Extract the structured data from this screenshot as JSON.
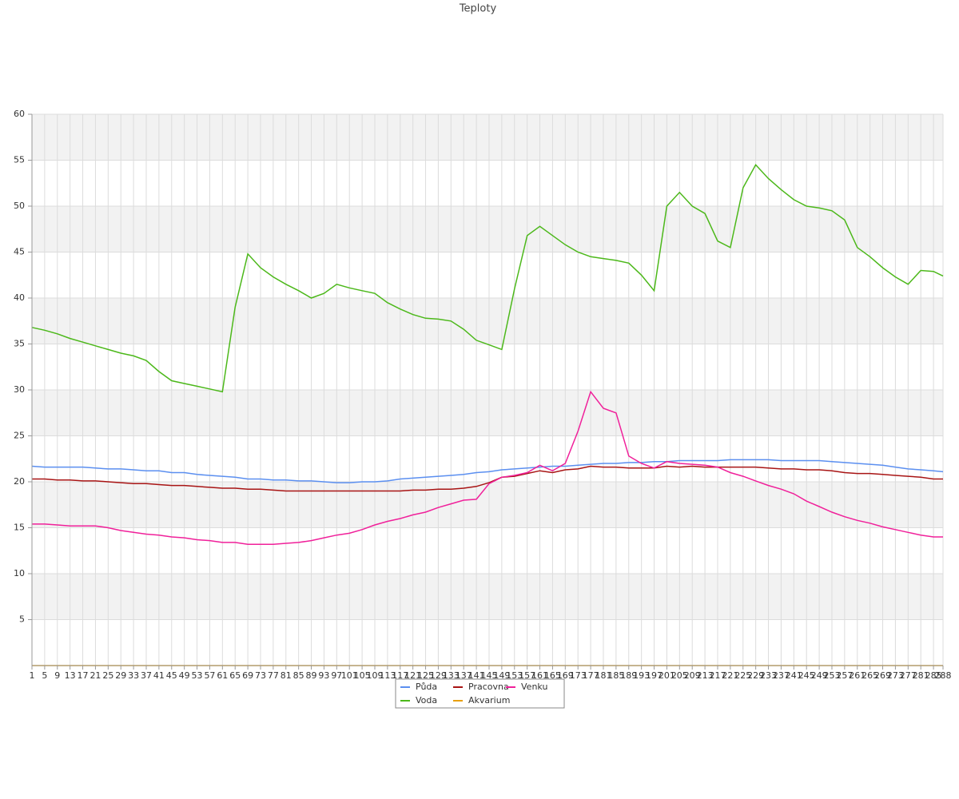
{
  "chart_data": {
    "type": "line",
    "title": "Teploty",
    "x": [
      1,
      5,
      9,
      13,
      17,
      21,
      25,
      29,
      33,
      37,
      41,
      45,
      49,
      53,
      57,
      61,
      65,
      69,
      73,
      77,
      81,
      85,
      89,
      93,
      97,
      101,
      105,
      109,
      113,
      117,
      121,
      125,
      129,
      133,
      137,
      141,
      145,
      149,
      153,
      157,
      161,
      165,
      169,
      173,
      177,
      181,
      185,
      189,
      193,
      197,
      201,
      205,
      209,
      213,
      217,
      221,
      225,
      229,
      233,
      237,
      241,
      245,
      249,
      253,
      257,
      261,
      265,
      269,
      273,
      277,
      281,
      285,
      288
    ],
    "xlim": [
      1,
      288
    ],
    "xticks": [
      1,
      5,
      9,
      13,
      17,
      21,
      25,
      29,
      33,
      37,
      41,
      45,
      49,
      53,
      57,
      61,
      65,
      69,
      73,
      77,
      81,
      85,
      89,
      93,
      97,
      101,
      105,
      109,
      113,
      117,
      121,
      125,
      129,
      133,
      137,
      141,
      145,
      149,
      153,
      157,
      161,
      165,
      169,
      173,
      177,
      181,
      185,
      189,
      193,
      197,
      201,
      205,
      209,
      213,
      217,
      221,
      225,
      229,
      233,
      237,
      241,
      245,
      249,
      253,
      257,
      261,
      265,
      269,
      273,
      277,
      281,
      285,
      288
    ],
    "ylim": [
      0,
      60
    ],
    "yticks": [
      5,
      10,
      15,
      20,
      25,
      30,
      35,
      40,
      45,
      50,
      55,
      60
    ],
    "grid": true,
    "legend": "bottom",
    "series": [
      {
        "name": "Půda",
        "color": "#5b8ff0",
        "values": [
          21.7,
          21.6,
          21.6,
          21.6,
          21.6,
          21.5,
          21.4,
          21.4,
          21.3,
          21.2,
          21.2,
          21.0,
          21.0,
          20.8,
          20.7,
          20.6,
          20.5,
          20.3,
          20.3,
          20.2,
          20.2,
          20.1,
          20.1,
          20.0,
          19.9,
          19.9,
          20.0,
          20.0,
          20.1,
          20.3,
          20.4,
          20.5,
          20.6,
          20.7,
          20.8,
          21.0,
          21.1,
          21.3,
          21.4,
          21.5,
          21.6,
          21.7,
          21.7,
          21.8,
          21.9,
          22.0,
          22.0,
          22.1,
          22.1,
          22.2,
          22.2,
          22.3,
          22.3,
          22.3,
          22.3,
          22.4,
          22.4,
          22.4,
          22.4,
          22.3,
          22.3,
          22.3,
          22.3,
          22.2,
          22.1,
          22.0,
          21.9,
          21.8,
          21.6,
          21.4,
          21.3,
          21.2,
          21.1
        ]
      },
      {
        "name": "Pracovna",
        "color": "#a81414",
        "values": [
          20.3,
          20.3,
          20.2,
          20.2,
          20.1,
          20.1,
          20.0,
          19.9,
          19.8,
          19.8,
          19.7,
          19.6,
          19.6,
          19.5,
          19.4,
          19.3,
          19.3,
          19.2,
          19.2,
          19.1,
          19.0,
          19.0,
          19.0,
          19.0,
          19.0,
          19.0,
          19.0,
          19.0,
          19.0,
          19.0,
          19.1,
          19.1,
          19.2,
          19.2,
          19.3,
          19.5,
          19.9,
          20.5,
          20.6,
          20.9,
          21.2,
          21.0,
          21.3,
          21.4,
          21.7,
          21.6,
          21.6,
          21.5,
          21.5,
          21.5,
          21.7,
          21.6,
          21.7,
          21.6,
          21.6,
          21.6,
          21.6,
          21.6,
          21.5,
          21.4,
          21.4,
          21.3,
          21.3,
          21.2,
          21.0,
          20.9,
          20.9,
          20.8,
          20.7,
          20.6,
          20.5,
          20.3,
          20.3
        ]
      },
      {
        "name": "Venku",
        "color": "#f0209a",
        "values": [
          15.4,
          15.4,
          15.3,
          15.2,
          15.2,
          15.2,
          15.0,
          14.7,
          14.5,
          14.3,
          14.2,
          14.0,
          13.9,
          13.7,
          13.6,
          13.4,
          13.4,
          13.2,
          13.2,
          13.2,
          13.3,
          13.4,
          13.6,
          13.9,
          14.2,
          14.4,
          14.8,
          15.3,
          15.7,
          16.0,
          16.4,
          16.7,
          17.2,
          17.6,
          18.0,
          18.1,
          19.8,
          20.5,
          20.7,
          21.0,
          21.8,
          21.2,
          22.0,
          25.5,
          29.8,
          28.0,
          27.5,
          22.8,
          22.0,
          21.5,
          22.2,
          22.0,
          21.9,
          21.8,
          21.6,
          21.0,
          20.6,
          20.1,
          19.6,
          19.2,
          18.7,
          17.9,
          17.3,
          16.7,
          16.2,
          15.8,
          15.5,
          15.1,
          14.8,
          14.5,
          14.2,
          14.0,
          14.0
        ]
      },
      {
        "name": "Voda",
        "color": "#4cb81a",
        "values": [
          36.8,
          36.5,
          36.1,
          35.6,
          35.2,
          34.8,
          34.4,
          34.0,
          33.7,
          33.2,
          32.0,
          31.0,
          30.7,
          30.4,
          30.1,
          29.8,
          39.0,
          44.8,
          43.3,
          42.3,
          41.5,
          40.8,
          40.0,
          40.5,
          41.5,
          41.1,
          40.8,
          40.5,
          39.5,
          38.8,
          38.2,
          37.8,
          37.7,
          37.5,
          36.6,
          35.4,
          34.9,
          34.4,
          41.0,
          46.8,
          47.8,
          46.8,
          45.8,
          45.0,
          44.5,
          44.3,
          44.1,
          43.8,
          42.5,
          40.8,
          50.0,
          51.5,
          50.0,
          49.2,
          46.2,
          45.5,
          52.0,
          54.5,
          53.0,
          51.8,
          50.7,
          50.0,
          49.8,
          49.5,
          48.5,
          45.5,
          44.5,
          43.3,
          42.3,
          41.5,
          43.0,
          42.9,
          42.4
        ]
      },
      {
        "name": "Akvarium",
        "color": "#e8a010",
        "values": [
          0,
          0,
          0,
          0,
          0,
          0,
          0,
          0,
          0,
          0,
          0,
          0,
          0,
          0,
          0,
          0,
          0,
          0,
          0,
          0,
          0,
          0,
          0,
          0,
          0,
          0,
          0,
          0,
          0,
          0,
          0,
          0,
          0,
          0,
          0,
          0,
          0,
          0,
          0,
          0,
          0,
          0,
          0,
          0,
          0,
          0,
          0,
          0,
          0,
          0,
          0,
          0,
          0,
          0,
          0,
          0,
          0,
          0,
          0,
          0,
          0,
          0,
          0,
          0,
          0,
          0,
          0,
          0,
          0,
          0,
          0,
          0,
          0
        ]
      }
    ]
  }
}
